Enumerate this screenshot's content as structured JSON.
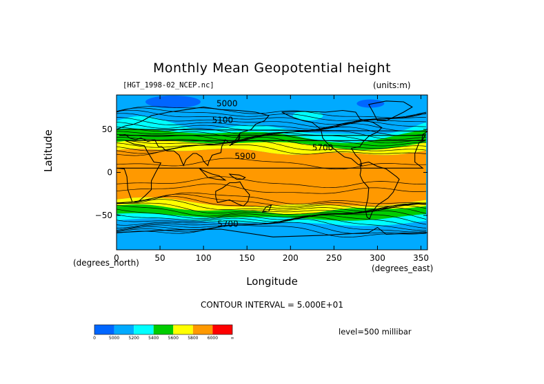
{
  "chart_data": {
    "type": "heatmap",
    "title": "Monthly Mean Geopotential height",
    "dataset": "[HGT_1998-02_NCEP.nc]",
    "units": "(units:m)",
    "xlabel": "Longitude",
    "xlabel_units": "(degrees_east)",
    "ylabel": "Latitude",
    "ylabel_units": "(degrees_north)",
    "xlim": [
      0,
      357.5
    ],
    "ylim": [
      -90,
      90
    ],
    "x_ticks": [
      0,
      50,
      100,
      150,
      200,
      250,
      300,
      350
    ],
    "x_tick_labels": [
      "0",
      "50",
      "100",
      "150",
      "200",
      "250",
      "300",
      "350"
    ],
    "y_ticks": [
      -50,
      0,
      50
    ],
    "y_tick_labels": [
      "−50",
      "0",
      "50"
    ],
    "contour_interval_text": "CONTOUR INTERVAL = 5.000E+01",
    "level_text": "level=500 millibar",
    "contour_labels": [
      {
        "text": "5100",
        "x": 122,
        "y": 61
      },
      {
        "text": "5900",
        "x": 148,
        "y": 19
      },
      {
        "text": "5700",
        "x": 237,
        "y": 29
      },
      {
        "text": "5700",
        "x": 128,
        "y": -60
      },
      {
        "text": "5000",
        "x": 127,
        "y": 80
      }
    ],
    "colorbar": {
      "colors": [
        "#0066ff",
        "#00aaff",
        "#00ffff",
        "#00cc00",
        "#ffff00",
        "#ff9900",
        "#ff0000"
      ],
      "labels": [
        "0",
        "5000",
        "5200",
        "5400",
        "5600",
        "5800",
        "6000",
        "∞"
      ]
    },
    "bands_description": "polar blue, mid-latitude green/yellow jets, tropical orange belt",
    "colors": {
      "low": "#0066ff",
      "blue": "#00aaff",
      "cyan": "#00ffff",
      "green": "#00cc00",
      "yellow": "#ffff00",
      "orange": "#ff9900",
      "red": "#ff0000",
      "outline": "#000000"
    }
  }
}
